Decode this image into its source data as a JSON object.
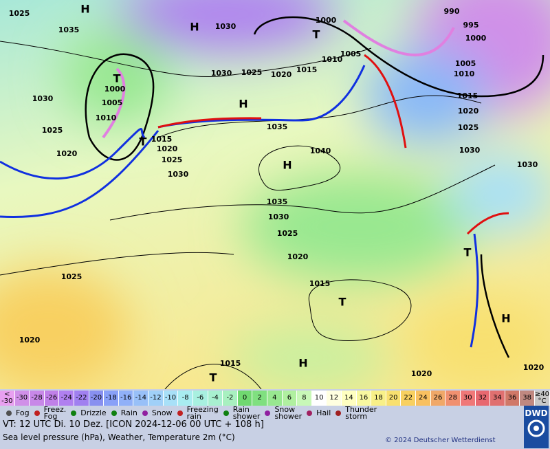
{
  "map": {
    "pressure_labels": [
      "1025",
      "1035",
      "1030",
      "1000",
      "990",
      "995",
      "1000",
      "1005",
      "1010",
      "1015",
      "1020",
      "1025",
      "1030",
      "1005",
      "1010",
      "1015",
      "1020",
      "1025",
      "1030",
      "1030",
      "1000",
      "1005",
      "1010",
      "1030",
      "1025",
      "1020",
      "1015",
      "1020",
      "1025",
      "1030",
      "1035",
      "1040",
      "1035",
      "1030",
      "1025",
      "1020",
      "1015",
      "1025",
      "1020",
      "1015",
      "1020",
      "1020"
    ],
    "highs": [
      "H",
      "H",
      "H",
      "H",
      "H",
      "H"
    ],
    "lows": [
      "T",
      "T",
      "T",
      "T",
      "T",
      "T"
    ]
  },
  "scale": [
    {
      "lines": [
        "<",
        "-30"
      ],
      "color": "#e8a0f0"
    },
    {
      "lines": [
        "-30"
      ],
      "color": "#d090e8"
    },
    {
      "lines": [
        "-28"
      ],
      "color": "#c888e8"
    },
    {
      "lines": [
        "-26"
      ],
      "color": "#c080e8"
    },
    {
      "lines": [
        "-24"
      ],
      "color": "#b080f0"
    },
    {
      "lines": [
        "-22"
      ],
      "color": "#a080f0"
    },
    {
      "lines": [
        "-20"
      ],
      "color": "#8890f0"
    },
    {
      "lines": [
        "-18"
      ],
      "color": "#88a0f8"
    },
    {
      "lines": [
        "-16"
      ],
      "color": "#90b0f8"
    },
    {
      "lines": [
        "-14"
      ],
      "color": "#98c0f8"
    },
    {
      "lines": [
        "-12"
      ],
      "color": "#a0d0f8"
    },
    {
      "lines": [
        "-10"
      ],
      "color": "#a8e0f8"
    },
    {
      "lines": [
        "-8"
      ],
      "color": "#a8ecf0"
    },
    {
      "lines": [
        "-6"
      ],
      "color": "#a8f0e0"
    },
    {
      "lines": [
        "-4"
      ],
      "color": "#a8f0d0"
    },
    {
      "lines": [
        "-2"
      ],
      "color": "#a8f0c0"
    },
    {
      "lines": [
        "0"
      ],
      "color": "#70d870"
    },
    {
      "lines": [
        "2"
      ],
      "color": "#80e080"
    },
    {
      "lines": [
        "4"
      ],
      "color": "#98e890"
    },
    {
      "lines": [
        "6"
      ],
      "color": "#b0f0a0"
    },
    {
      "lines": [
        "8"
      ],
      "color": "#c8f8b8"
    },
    {
      "lines": [
        "10"
      ],
      "color": "#ffffff"
    },
    {
      "lines": [
        "12"
      ],
      "color": "#ffffe0"
    },
    {
      "lines": [
        "14"
      ],
      "color": "#ffffc0"
    },
    {
      "lines": [
        "16"
      ],
      "color": "#f8f8a0"
    },
    {
      "lines": [
        "18"
      ],
      "color": "#f8f088"
    },
    {
      "lines": [
        "20"
      ],
      "color": "#f8e070"
    },
    {
      "lines": [
        "22"
      ],
      "color": "#f8d060"
    },
    {
      "lines": [
        "24"
      ],
      "color": "#f8c060"
    },
    {
      "lines": [
        "26"
      ],
      "color": "#f0a868"
    },
    {
      "lines": [
        "28"
      ],
      "color": "#f09070"
    },
    {
      "lines": [
        "30"
      ],
      "color": "#f07878"
    },
    {
      "lines": [
        "32"
      ],
      "color": "#e86870"
    },
    {
      "lines": [
        "34"
      ],
      "color": "#e07070"
    },
    {
      "lines": [
        "36"
      ],
      "color": "#d07868"
    },
    {
      "lines": [
        "38"
      ],
      "color": "#c08880"
    },
    {
      "lines": [
        "≥40",
        "°C"
      ],
      "color": "#c8c8c8"
    }
  ],
  "legend": [
    {
      "lines": [
        "Fog"
      ],
      "color": "#505050"
    },
    {
      "lines": [
        "Freez.",
        "Fog"
      ],
      "color": "#c02020"
    },
    {
      "lines": [
        "Drizzle"
      ],
      "color": "#108010"
    },
    {
      "lines": [
        "Rain"
      ],
      "color": "#108010"
    },
    {
      "lines": [
        "Snow"
      ],
      "color": "#9020a0"
    },
    {
      "lines": [
        "Freezing",
        "rain"
      ],
      "color": "#c02020"
    },
    {
      "lines": [
        "Rain",
        "shower"
      ],
      "color": "#108010"
    },
    {
      "lines": [
        "Snow",
        "shower"
      ],
      "color": "#9020a0"
    },
    {
      "lines": [
        "Hail"
      ],
      "color": "#a02060"
    },
    {
      "lines": [
        "Thunder",
        "storm"
      ],
      "color": "#a02020"
    }
  ],
  "footer": {
    "valid_time": "VT: 12 UTC Di.  10 Dez. [ICON 2024-12-06  00 UTC + 108 h]",
    "description": "Sea level pressure (hPa), Weather, Temperature 2m (°C)",
    "copyright": "© 2024 Deutscher Wetterdienst",
    "logo": "DWD"
  }
}
